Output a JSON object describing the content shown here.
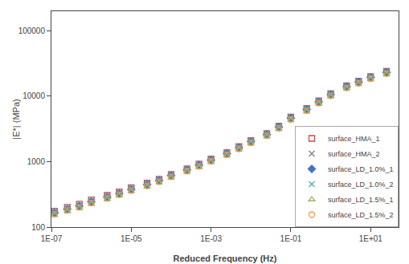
{
  "chart_data": {
    "type": "scatter",
    "xlabel": "Reduced Frequency (Hz)",
    "ylabel": "|E*| (MPa)",
    "log": true,
    "grid": false,
    "legend": "lower right",
    "xlim": [
      1e-07,
      50.11872336272722
    ],
    "ylim": [
      100,
      199526.2314968879
    ],
    "xticks": [
      {
        "value": 1e-07,
        "label": "1E-07"
      },
      {
        "value": 1e-05,
        "label": "1E-05"
      },
      {
        "value": 0.001,
        "label": "1E-03"
      },
      {
        "value": 0.1,
        "label": "1E-01"
      },
      {
        "value": 10,
        "label": "1E+01"
      }
    ],
    "yticks": [
      100,
      1000,
      10000,
      100000
    ],
    "x": [
      1.2e-07,
      2.5e-07,
      5e-07,
      1e-06,
      2.5e-06,
      5e-06,
      1e-05,
      2.5e-05,
      5e-05,
      0.0001,
      0.00025,
      0.0005,
      0.001,
      0.0025,
      0.005,
      0.01,
      0.025,
      0.05,
      0.1,
      0.25,
      0.5,
      1.0,
      2.5,
      5.0,
      10.0,
      25.0
    ],
    "series": [
      {
        "name": "surface_HMA_1",
        "color": "#c0504d",
        "marker": "square-open",
        "values": [
          175,
          200,
          225,
          260,
          305,
          345,
          400,
          470,
          540,
          640,
          780,
          920,
          1100,
          1380,
          1700,
          2100,
          2700,
          3500,
          4800,
          6500,
          8500,
          11000,
          14500,
          17000,
          20000,
          24000
        ]
      },
      {
        "name": "surface_HMA_2",
        "color": "#808080",
        "marker": "x-thin",
        "values": [
          170,
          195,
          218,
          252,
          298,
          338,
          392,
          462,
          532,
          630,
          768,
          908,
          1085,
          1360,
          1680,
          2080,
          2680,
          3480,
          4750,
          6450,
          8450,
          10900,
          14400,
          16900,
          19800,
          23800
        ]
      },
      {
        "name": "surface_LD_1.0%_1",
        "color": "#4472c4",
        "marker": "diamond",
        "values": [
          165,
          188,
          210,
          243,
          287,
          326,
          378,
          446,
          515,
          612,
          748,
          885,
          1060,
          1330,
          1640,
          2030,
          2600,
          3380,
          4620,
          6280,
          8200,
          10600,
          14000,
          16500,
          19400,
          23200
        ]
      },
      {
        "name": "surface_LD_1.0%_2",
        "color": "#4bacc6",
        "marker": "x-thin",
        "values": [
          163,
          185,
          207,
          240,
          283,
          322,
          373,
          440,
          508,
          605,
          738,
          873,
          1045,
          1312,
          1620,
          2005,
          2570,
          3340,
          4570,
          6210,
          8120,
          10500,
          13800,
          16300,
          19200,
          22900
        ]
      },
      {
        "name": "surface_LD_1.5%_1",
        "color": "#9bbb59",
        "marker": "triangle-up-open",
        "values": [
          152,
          173,
          194,
          225,
          265,
          302,
          350,
          413,
          478,
          568,
          694,
          820,
          982,
          1233,
          1522,
          1883,
          2415,
          3140,
          4290,
          5830,
          7620,
          9860,
          13000,
          15300,
          18000,
          21500
        ]
      },
      {
        "name": "surface_LD_1.5%_2",
        "color": "#f79646",
        "marker": "circle-open",
        "values": [
          158,
          180,
          201,
          233,
          275,
          313,
          363,
          428,
          494,
          587,
          717,
          847,
          1014,
          1273,
          1571,
          1944,
          2492,
          3240,
          4430,
          6020,
          7870,
          10180,
          13420,
          15800,
          18600,
          22200
        ]
      }
    ]
  }
}
